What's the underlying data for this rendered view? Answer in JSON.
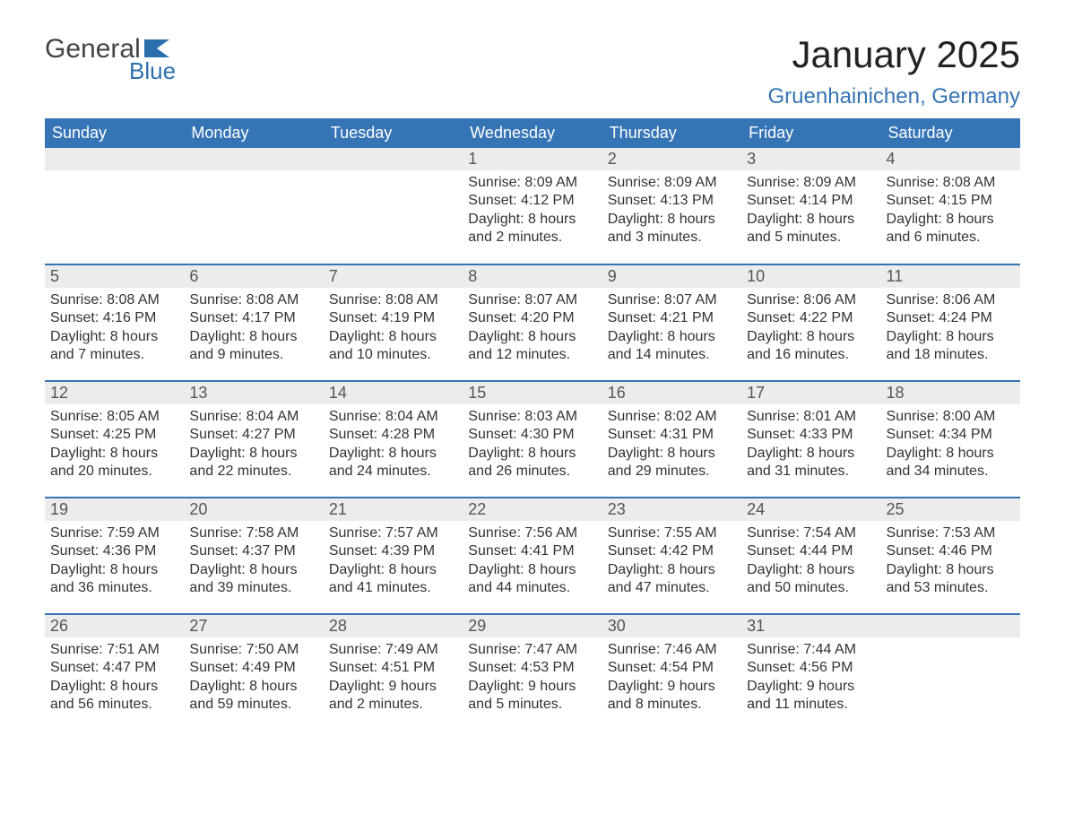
{
  "logo": {
    "word1": "General",
    "word2": "Blue"
  },
  "header": {
    "month_title": "January 2025",
    "location": "Gruenhainichen, Germany"
  },
  "colors": {
    "blue_header": "#3574b5",
    "blue_accent": "#3574b5",
    "row_border": "#3574b5",
    "daynum_bg": "#ececec",
    "background": "#ffffff",
    "text": "#333333"
  },
  "calendar": {
    "type": "table",
    "columns": [
      "Sunday",
      "Monday",
      "Tuesday",
      "Wednesday",
      "Thursday",
      "Friday",
      "Saturday"
    ],
    "weeks": [
      [
        null,
        null,
        null,
        {
          "day": "1",
          "sunrise": "Sunrise: 8:09 AM",
          "sunset": "Sunset: 4:12 PM",
          "daylight": "Daylight: 8 hours and 2 minutes."
        },
        {
          "day": "2",
          "sunrise": "Sunrise: 8:09 AM",
          "sunset": "Sunset: 4:13 PM",
          "daylight": "Daylight: 8 hours and 3 minutes."
        },
        {
          "day": "3",
          "sunrise": "Sunrise: 8:09 AM",
          "sunset": "Sunset: 4:14 PM",
          "daylight": "Daylight: 8 hours and 5 minutes."
        },
        {
          "day": "4",
          "sunrise": "Sunrise: 8:08 AM",
          "sunset": "Sunset: 4:15 PM",
          "daylight": "Daylight: 8 hours and 6 minutes."
        }
      ],
      [
        {
          "day": "5",
          "sunrise": "Sunrise: 8:08 AM",
          "sunset": "Sunset: 4:16 PM",
          "daylight": "Daylight: 8 hours and 7 minutes."
        },
        {
          "day": "6",
          "sunrise": "Sunrise: 8:08 AM",
          "sunset": "Sunset: 4:17 PM",
          "daylight": "Daylight: 8 hours and 9 minutes."
        },
        {
          "day": "7",
          "sunrise": "Sunrise: 8:08 AM",
          "sunset": "Sunset: 4:19 PM",
          "daylight": "Daylight: 8 hours and 10 minutes."
        },
        {
          "day": "8",
          "sunrise": "Sunrise: 8:07 AM",
          "sunset": "Sunset: 4:20 PM",
          "daylight": "Daylight: 8 hours and 12 minutes."
        },
        {
          "day": "9",
          "sunrise": "Sunrise: 8:07 AM",
          "sunset": "Sunset: 4:21 PM",
          "daylight": "Daylight: 8 hours and 14 minutes."
        },
        {
          "day": "10",
          "sunrise": "Sunrise: 8:06 AM",
          "sunset": "Sunset: 4:22 PM",
          "daylight": "Daylight: 8 hours and 16 minutes."
        },
        {
          "day": "11",
          "sunrise": "Sunrise: 8:06 AM",
          "sunset": "Sunset: 4:24 PM",
          "daylight": "Daylight: 8 hours and 18 minutes."
        }
      ],
      [
        {
          "day": "12",
          "sunrise": "Sunrise: 8:05 AM",
          "sunset": "Sunset: 4:25 PM",
          "daylight": "Daylight: 8 hours and 20 minutes."
        },
        {
          "day": "13",
          "sunrise": "Sunrise: 8:04 AM",
          "sunset": "Sunset: 4:27 PM",
          "daylight": "Daylight: 8 hours and 22 minutes."
        },
        {
          "day": "14",
          "sunrise": "Sunrise: 8:04 AM",
          "sunset": "Sunset: 4:28 PM",
          "daylight": "Daylight: 8 hours and 24 minutes."
        },
        {
          "day": "15",
          "sunrise": "Sunrise: 8:03 AM",
          "sunset": "Sunset: 4:30 PM",
          "daylight": "Daylight: 8 hours and 26 minutes."
        },
        {
          "day": "16",
          "sunrise": "Sunrise: 8:02 AM",
          "sunset": "Sunset: 4:31 PM",
          "daylight": "Daylight: 8 hours and 29 minutes."
        },
        {
          "day": "17",
          "sunrise": "Sunrise: 8:01 AM",
          "sunset": "Sunset: 4:33 PM",
          "daylight": "Daylight: 8 hours and 31 minutes."
        },
        {
          "day": "18",
          "sunrise": "Sunrise: 8:00 AM",
          "sunset": "Sunset: 4:34 PM",
          "daylight": "Daylight: 8 hours and 34 minutes."
        }
      ],
      [
        {
          "day": "19",
          "sunrise": "Sunrise: 7:59 AM",
          "sunset": "Sunset: 4:36 PM",
          "daylight": "Daylight: 8 hours and 36 minutes."
        },
        {
          "day": "20",
          "sunrise": "Sunrise: 7:58 AM",
          "sunset": "Sunset: 4:37 PM",
          "daylight": "Daylight: 8 hours and 39 minutes."
        },
        {
          "day": "21",
          "sunrise": "Sunrise: 7:57 AM",
          "sunset": "Sunset: 4:39 PM",
          "daylight": "Daylight: 8 hours and 41 minutes."
        },
        {
          "day": "22",
          "sunrise": "Sunrise: 7:56 AM",
          "sunset": "Sunset: 4:41 PM",
          "daylight": "Daylight: 8 hours and 44 minutes."
        },
        {
          "day": "23",
          "sunrise": "Sunrise: 7:55 AM",
          "sunset": "Sunset: 4:42 PM",
          "daylight": "Daylight: 8 hours and 47 minutes."
        },
        {
          "day": "24",
          "sunrise": "Sunrise: 7:54 AM",
          "sunset": "Sunset: 4:44 PM",
          "daylight": "Daylight: 8 hours and 50 minutes."
        },
        {
          "day": "25",
          "sunrise": "Sunrise: 7:53 AM",
          "sunset": "Sunset: 4:46 PM",
          "daylight": "Daylight: 8 hours and 53 minutes."
        }
      ],
      [
        {
          "day": "26",
          "sunrise": "Sunrise: 7:51 AM",
          "sunset": "Sunset: 4:47 PM",
          "daylight": "Daylight: 8 hours and 56 minutes."
        },
        {
          "day": "27",
          "sunrise": "Sunrise: 7:50 AM",
          "sunset": "Sunset: 4:49 PM",
          "daylight": "Daylight: 8 hours and 59 minutes."
        },
        {
          "day": "28",
          "sunrise": "Sunrise: 7:49 AM",
          "sunset": "Sunset: 4:51 PM",
          "daylight": "Daylight: 9 hours and 2 minutes."
        },
        {
          "day": "29",
          "sunrise": "Sunrise: 7:47 AM",
          "sunset": "Sunset: 4:53 PM",
          "daylight": "Daylight: 9 hours and 5 minutes."
        },
        {
          "day": "30",
          "sunrise": "Sunrise: 7:46 AM",
          "sunset": "Sunset: 4:54 PM",
          "daylight": "Daylight: 9 hours and 8 minutes."
        },
        {
          "day": "31",
          "sunrise": "Sunrise: 7:44 AM",
          "sunset": "Sunset: 4:56 PM",
          "daylight": "Daylight: 9 hours and 11 minutes."
        },
        null
      ]
    ]
  }
}
